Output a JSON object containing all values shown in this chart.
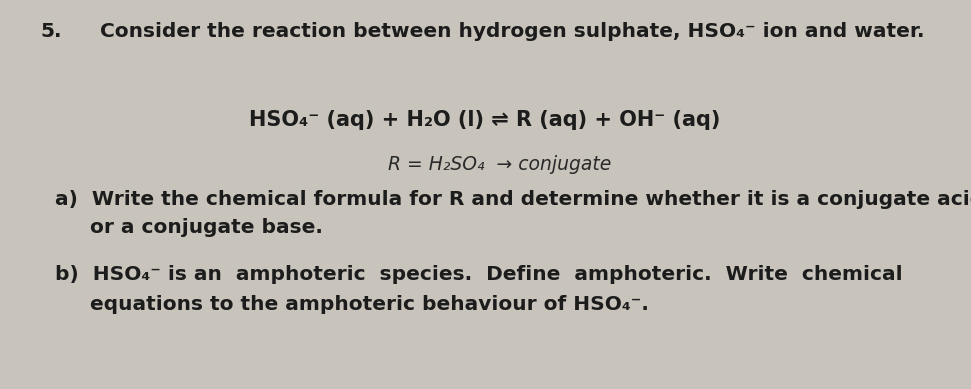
{
  "background_color": "#c8c4bc",
  "question_number": "5.",
  "line1": "Consider the reaction between hydrogen sulphate, HSO₄⁻ ion and water.",
  "line2_math": "HSO₄⁻ (aq) + H₂O (l) ⇌ R (aq) + OH⁻ (aq)",
  "line3_handwritten": "R = H₂SO₄  → conjugate",
  "line_a1": "a)  Write the chemical formula for R and determine whether it is a conjugate acid",
  "line_a2": "     or a conjugate base.",
  "line_b1": "b)  HSO₄⁻ is an  amphoteric  species.  Define  amphoteric.  Write  chemical",
  "line_b2": "     equations to the amphoteric behaviour of HSO₄⁻.",
  "font_size_header": 14.5,
  "font_size_math": 15,
  "font_size_handwritten": 13.5,
  "font_size_body": 14.5,
  "text_color": "#1c1c1c",
  "handwritten_color": "#2a2a2a",
  "figwidth": 9.71,
  "figheight": 3.89,
  "dpi": 100
}
